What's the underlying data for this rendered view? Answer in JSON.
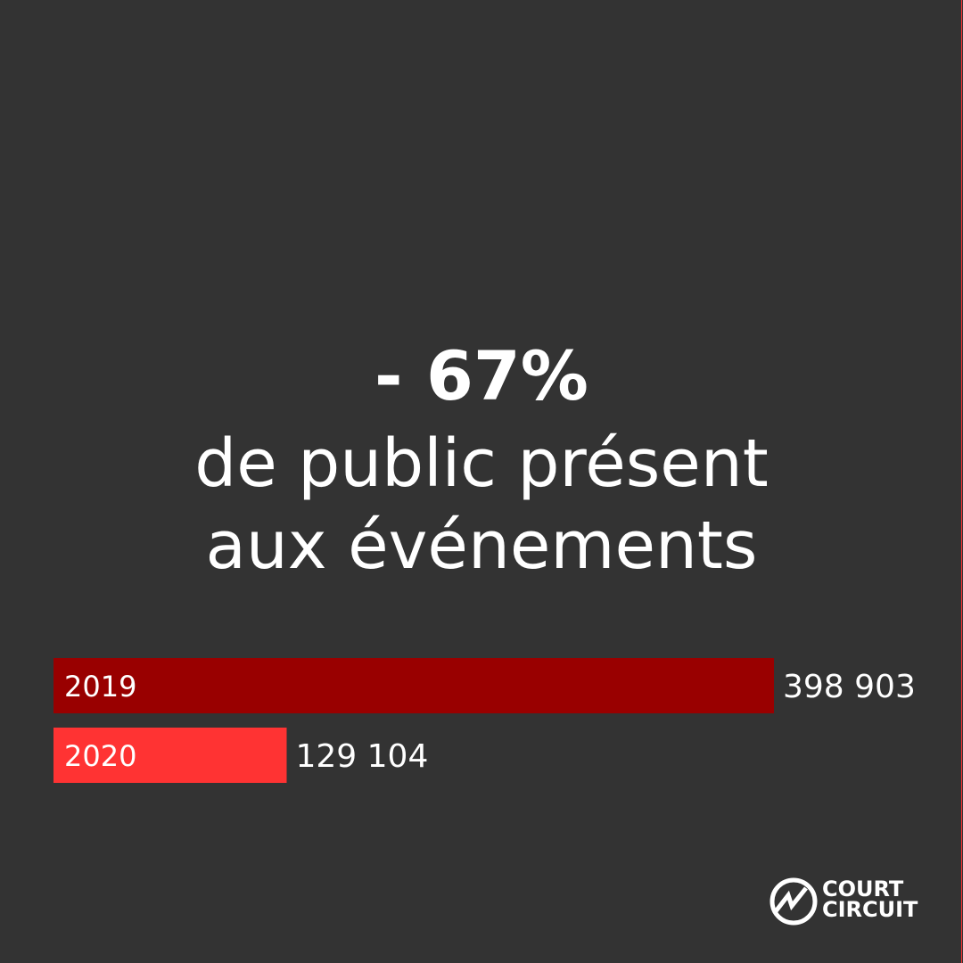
{
  "chart_data": {
    "type": "hbar",
    "title": "- 67%",
    "subtitle": [
      "de public présent",
      "aux événements"
    ],
    "categories": [
      "2019",
      "2020"
    ],
    "values": [
      398903,
      129104
    ],
    "value_labels": [
      "398 903",
      "129 104"
    ],
    "colors": [
      "#990000",
      "#ff3333"
    ]
  },
  "brand": {
    "lines": [
      "COURT",
      "CIRCUIT"
    ]
  }
}
